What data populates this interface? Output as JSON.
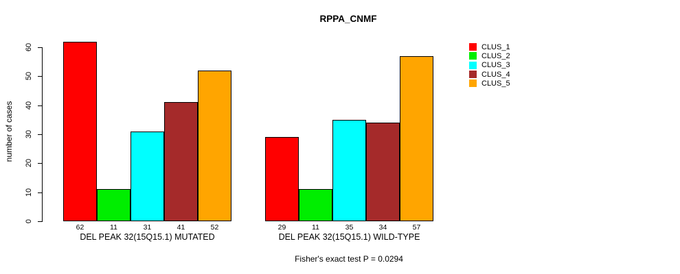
{
  "chart_data": {
    "type": "bar",
    "title": "RPPA_CNMF",
    "xlabel": "",
    "ylabel": "number of cases",
    "ylim": [
      0,
      60
    ],
    "yticks": [
      0,
      10,
      20,
      30,
      40,
      50,
      60
    ],
    "grid": false,
    "legend_position": "right",
    "categories": [
      "DEL PEAK 32(15Q15.1) MUTATED",
      "DEL PEAK 32(15Q15.1) WILD-TYPE"
    ],
    "series": [
      {
        "name": "CLUS_1",
        "color": "#FF0000",
        "values": [
          62,
          29
        ]
      },
      {
        "name": "CLUS_2",
        "color": "#00EE00",
        "values": [
          11,
          11
        ]
      },
      {
        "name": "CLUS_3",
        "color": "#00FFFF",
        "values": [
          31,
          35
        ]
      },
      {
        "name": "CLUS_4",
        "color": "#A52A2A",
        "values": [
          41,
          34
        ]
      },
      {
        "name": "CLUS_5",
        "color": "#FFA500",
        "values": [
          52,
          57
        ]
      }
    ],
    "bar_value_labels": [
      [
        62,
        11,
        31,
        41,
        52
      ],
      [
        29,
        11,
        35,
        34,
        57
      ]
    ],
    "annotation": "Fisher's exact test P = 0.0294"
  },
  "colors": {
    "axis": "#000000",
    "background": "#FFFFFF",
    "text": "#000000"
  }
}
